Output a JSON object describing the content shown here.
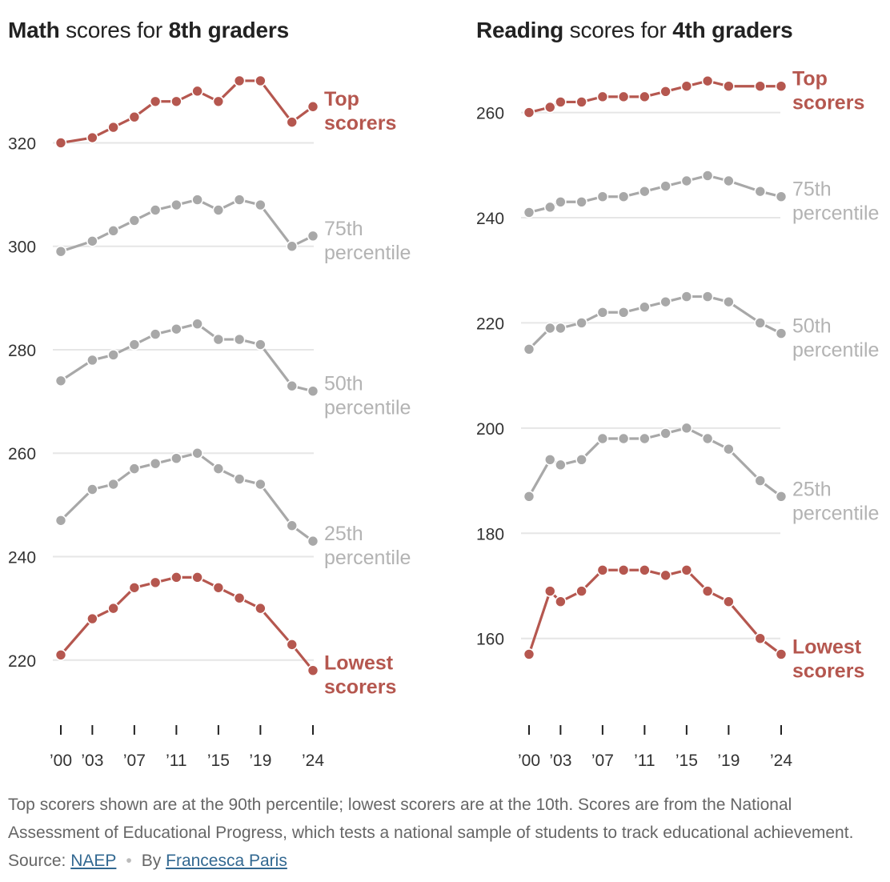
{
  "colors": {
    "highlight": "#b5574f",
    "muted": "#a8a8a8",
    "label_muted": "#b3b3b3",
    "grid": "#e6e6e6",
    "text": "#333333"
  },
  "left_title": {
    "bold1": "Math",
    "mid": "scores for",
    "bold2": "8th graders"
  },
  "right_title": {
    "bold1": "Reading",
    "mid": "scores for",
    "bold2": "4th graders"
  },
  "footnote": {
    "text": "Top scorers shown are at the 90th percentile; lowest scorers are at the 10th. Scores are from the National Assessment of Educational Progress, which tests a national sample of students to track educational achievement. Source: ",
    "source_link": "NAEP",
    "separator": "•",
    "by": "By",
    "author_link": "Francesca Paris"
  },
  "chart_data": [
    {
      "type": "line",
      "title": "Math scores for 8th graders",
      "x": [
        2000,
        2003,
        2005,
        2007,
        2009,
        2011,
        2013,
        2015,
        2017,
        2019,
        2022,
        2024
      ],
      "x_ticks": [
        2000,
        2003,
        2007,
        2011,
        2015,
        2019,
        2024
      ],
      "x_tick_labels": [
        "’00",
        "’03",
        "’07",
        "’11",
        "’15",
        "’19",
        "’24"
      ],
      "y_ticks": [
        220,
        240,
        260,
        280,
        300,
        320
      ],
      "ylim": [
        213,
        334
      ],
      "xlim": [
        2000,
        2024
      ],
      "grid": true,
      "series": [
        {
          "name": "Top scorers",
          "label_lines": [
            "Top",
            "scorers"
          ],
          "highlight": true,
          "values": [
            320,
            321,
            323,
            325,
            328,
            328,
            330,
            328,
            332,
            332,
            324,
            327
          ]
        },
        {
          "name": "75th percentile",
          "label_lines": [
            "75th",
            "percentile"
          ],
          "highlight": false,
          "values": [
            299,
            301,
            303,
            305,
            307,
            308,
            309,
            307,
            309,
            308,
            300,
            302
          ]
        },
        {
          "name": "50th percentile",
          "label_lines": [
            "50th",
            "percentile"
          ],
          "highlight": false,
          "values": [
            274,
            278,
            279,
            281,
            283,
            284,
            285,
            282,
            282,
            281,
            273,
            272
          ]
        },
        {
          "name": "25th percentile",
          "label_lines": [
            "25th",
            "percentile"
          ],
          "highlight": false,
          "values": [
            247,
            253,
            254,
            257,
            258,
            259,
            260,
            257,
            255,
            254,
            246,
            243
          ]
        },
        {
          "name": "Lowest scorers",
          "label_lines": [
            "Lowest",
            "scorers"
          ],
          "highlight": true,
          "values": [
            221,
            228,
            230,
            234,
            235,
            236,
            236,
            234,
            232,
            230,
            223,
            218
          ]
        }
      ]
    },
    {
      "type": "line",
      "title": "Reading scores for 4th graders",
      "x": [
        2000,
        2002,
        2003,
        2005,
        2007,
        2009,
        2011,
        2013,
        2015,
        2017,
        2019,
        2022,
        2024
      ],
      "x_ticks": [
        2000,
        2003,
        2007,
        2011,
        2015,
        2019,
        2024
      ],
      "x_tick_labels": [
        "’00",
        "’03",
        "’07",
        "’11",
        "’15",
        "’19",
        "’24"
      ],
      "y_ticks": [
        160,
        180,
        200,
        220,
        240,
        260
      ],
      "ylim": [
        149,
        268
      ],
      "xlim": [
        2000,
        2024
      ],
      "grid": true,
      "series": [
        {
          "name": "Top scorers",
          "label_lines": [
            "Top",
            "scorers"
          ],
          "highlight": true,
          "values": [
            260,
            261,
            262,
            262,
            263,
            263,
            263,
            264,
            265,
            266,
            265,
            265,
            265
          ]
        },
        {
          "name": "75th percentile",
          "label_lines": [
            "75th",
            "percentile"
          ],
          "highlight": false,
          "values": [
            241,
            242,
            243,
            243,
            244,
            244,
            245,
            246,
            247,
            248,
            247,
            245,
            244
          ]
        },
        {
          "name": "50th percentile",
          "label_lines": [
            "50th",
            "percentile"
          ],
          "highlight": false,
          "values": [
            215,
            219,
            219,
            220,
            222,
            222,
            223,
            224,
            225,
            225,
            224,
            220,
            218
          ]
        },
        {
          "name": "25th percentile",
          "label_lines": [
            "25th",
            "percentile"
          ],
          "highlight": false,
          "values": [
            187,
            194,
            193,
            194,
            198,
            198,
            198,
            199,
            200,
            198,
            196,
            190,
            187
          ]
        },
        {
          "name": "Lowest scorers",
          "label_lines": [
            "Lowest",
            "scorers"
          ],
          "highlight": true,
          "values": [
            157,
            169,
            167,
            169,
            173,
            173,
            173,
            172,
            173,
            169,
            167,
            160,
            157
          ]
        }
      ]
    }
  ]
}
